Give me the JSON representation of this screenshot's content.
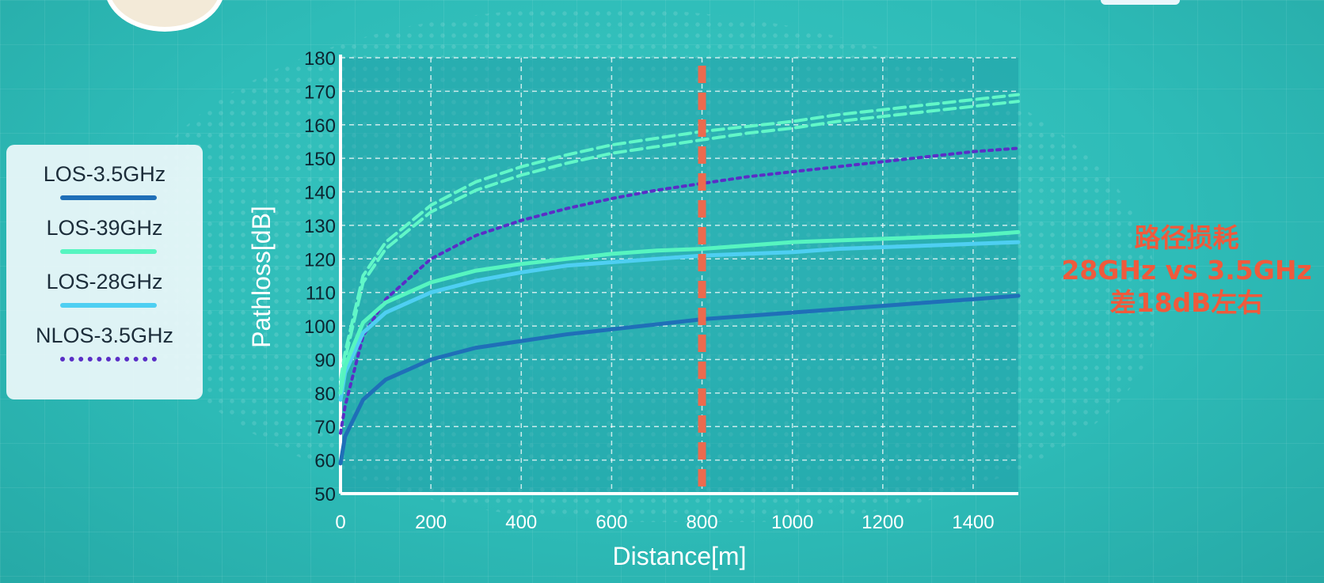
{
  "chart_data": {
    "type": "line",
    "xlabel": "Distance[m]",
    "ylabel": "Pathloss[dB]",
    "xlim": [
      0,
      1500
    ],
    "ylim": [
      50,
      180
    ],
    "xticks": [
      0,
      200,
      400,
      600,
      800,
      1000,
      1200,
      1400
    ],
    "yticks": [
      50,
      60,
      70,
      80,
      90,
      100,
      110,
      120,
      130,
      140,
      150,
      160,
      170,
      180
    ],
    "grid": true,
    "legend_position": "left",
    "marker_line": {
      "x": 800,
      "color": "#ec6a4e"
    },
    "x": [
      10,
      50,
      100,
      200,
      300,
      400,
      500,
      600,
      700,
      800,
      900,
      1000,
      1100,
      1200,
      1300,
      1400,
      1500
    ],
    "series": [
      {
        "name": "LOS-3.5GHz",
        "style": "solid",
        "color": "#1f6fb8",
        "values": [
          67,
          78,
          84,
          90,
          93.5,
          95.5,
          97.5,
          99,
          100.5,
          102,
          103,
          104,
          105,
          106,
          107,
          108,
          109
        ]
      },
      {
        "name": "LOS-39GHz",
        "style": "solid",
        "color": "#56f5c0",
        "values": [
          88,
          101,
          107,
          113,
          116.5,
          118.5,
          120,
          121.5,
          122.5,
          123,
          124,
          125,
          125.5,
          126,
          126.5,
          127,
          128
        ]
      },
      {
        "name": "LOS-28GHz",
        "style": "solid",
        "color": "#4ecff2",
        "values": [
          86,
          98,
          104,
          110,
          113.5,
          116,
          118,
          119,
          120,
          121,
          121.5,
          122,
          123,
          123.5,
          124,
          124.5,
          125
        ]
      },
      {
        "name": "NLOS-3.5GHz",
        "style": "dotted",
        "color": "#5a2ec6",
        "values": [
          76,
          97,
          108,
          120,
          127,
          131.5,
          135,
          138,
          140.5,
          142.5,
          144.5,
          146,
          147.5,
          149,
          150.5,
          152,
          153
        ]
      },
      {
        "name": "",
        "style": "dashed",
        "color": "#61f7c8",
        "values": [
          92,
          115,
          125,
          136,
          143,
          147.5,
          151,
          154,
          156,
          158,
          159.5,
          161,
          163,
          164.5,
          166,
          167.5,
          169
        ]
      },
      {
        "name": "",
        "style": "dashed",
        "color": "#61f7c8",
        "values": [
          90,
          113,
          123,
          134,
          140.5,
          145,
          148.5,
          151.5,
          153.5,
          155.5,
          157.5,
          159,
          161,
          162.5,
          164,
          165.5,
          167
        ]
      }
    ]
  },
  "legend": {
    "items": [
      {
        "label": "LOS-3.5GHz",
        "color": "#1f6fb8",
        "style": "solid"
      },
      {
        "label": "LOS-39GHz",
        "color": "#56f5c0",
        "style": "solid"
      },
      {
        "label": "LOS-28GHz",
        "color": "#4ecff2",
        "style": "solid"
      },
      {
        "label": "NLOS-3.5GHz",
        "color": "#5a2ec6",
        "style": "dotted"
      }
    ]
  },
  "annotation": {
    "line1": "路径损耗",
    "line2": "28GHz vs 3.5GHz",
    "line3": "差18dB左右",
    "color": "#ef5a3c"
  }
}
